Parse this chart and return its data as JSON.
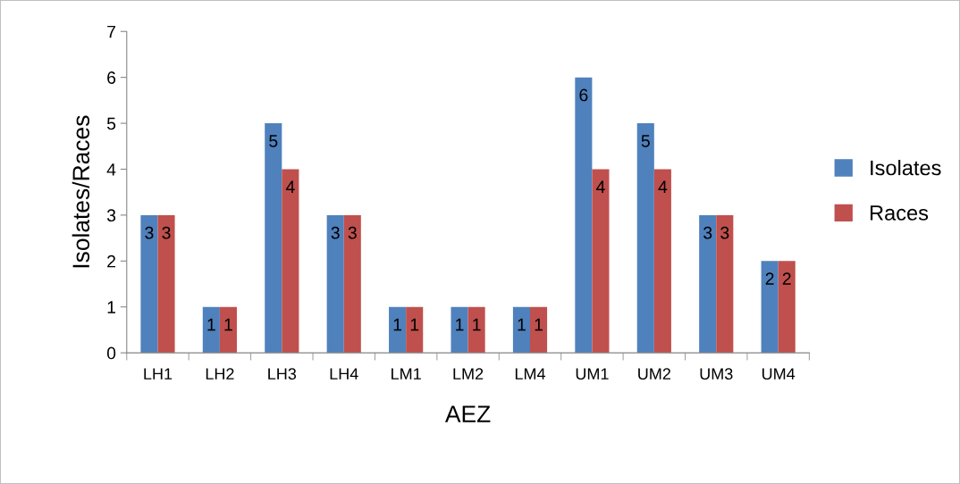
{
  "chart_data": {
    "type": "bar",
    "xlabel": "AEZ",
    "ylabel": "Isolates/Races",
    "categories": [
      "LH1",
      "LH2",
      "LH3",
      "LH4",
      "LM1",
      "LM2",
      "LM4",
      "UM1",
      "UM2",
      "UM3",
      "UM4"
    ],
    "series": [
      {
        "name": "Isolates",
        "color": "#4f81bd",
        "values": [
          3,
          1,
          5,
          3,
          1,
          1,
          1,
          6,
          5,
          3,
          2
        ]
      },
      {
        "name": "Races",
        "color": "#c0504d",
        "values": [
          3,
          1,
          4,
          3,
          1,
          1,
          1,
          4,
          4,
          3,
          2
        ]
      }
    ],
    "ylim": [
      0,
      7
    ],
    "yticks": [
      0,
      1,
      2,
      3,
      4,
      5,
      6,
      7
    ],
    "grid": false,
    "legend": "right",
    "data_labels": true
  }
}
